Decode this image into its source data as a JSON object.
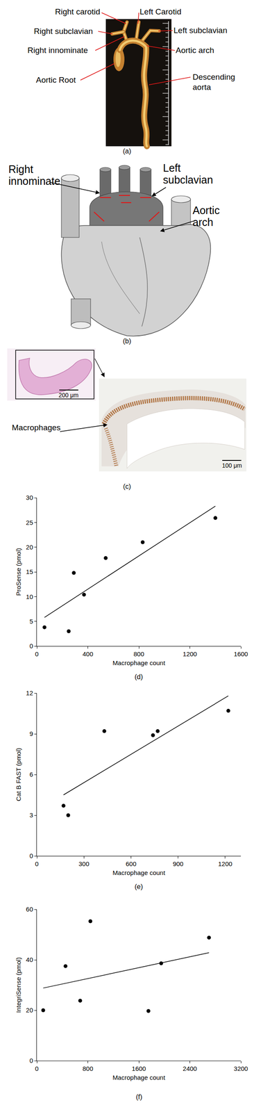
{
  "panel_a": {
    "caption": "(a)",
    "labels": [
      "Right carotid",
      "Left Carotid",
      "Right subclavian",
      "Left subclavian",
      "Right innominate",
      "Aortic arch",
      "Aortic Root",
      "Descending aorta"
    ]
  },
  "panel_b": {
    "caption": "(b)",
    "labels": [
      "Right innominate",
      "Left subclavian",
      "Aortic arch"
    ]
  },
  "panel_c": {
    "caption": "(c)",
    "scale_bars": [
      "200 μm",
      "100 μm"
    ],
    "label": "Macrophages"
  },
  "chart_data": [
    {
      "type": "scatter",
      "caption": "(d)",
      "x_label": "Macrophage count",
      "y_label": "ProSense (pmol)",
      "x": [
        60,
        250,
        290,
        370,
        540,
        830,
        1400
      ],
      "y": [
        3.8,
        3.0,
        14.8,
        10.4,
        17.8,
        21.0,
        25.9
      ],
      "fit_line": {
        "x": [
          60,
          1400
        ],
        "y": [
          5.8,
          28.3
        ],
        "line_style": "solid"
      },
      "xlim": [
        0,
        1600
      ],
      "xticks": [
        0,
        400,
        800,
        1200,
        1600
      ],
      "ylim": [
        0,
        30
      ],
      "yticks": [
        0,
        5,
        10,
        15,
        20,
        25,
        30
      ],
      "color": "#000000",
      "marker": "circle",
      "grid": false
    },
    {
      "type": "scatter",
      "caption": "(e)",
      "x_label": "Macrophage count",
      "y_label": "Cat B FAST (pmol)",
      "x": [
        170,
        200,
        430,
        740,
        770,
        1220
      ],
      "y": [
        3.7,
        3.0,
        9.2,
        8.9,
        9.2,
        10.7
      ],
      "fit_line": {
        "x": [
          170,
          1220
        ],
        "y": [
          4.5,
          11.8
        ],
        "line_style": "solid"
      },
      "xlim": [
        0,
        1300
      ],
      "xticks": [
        0,
        300,
        600,
        900,
        1200
      ],
      "ylim": [
        0,
        12
      ],
      "yticks": [
        0,
        3,
        6,
        9,
        12
      ],
      "color": "#000000",
      "marker": "circle",
      "grid": false
    },
    {
      "type": "scatter",
      "caption": "(f)",
      "x_label": "Macrophage count",
      "y_label": "IntegriSense (pmol)",
      "x": [
        100,
        450,
        680,
        840,
        1750,
        1950,
        2700
      ],
      "y": [
        20.0,
        37.5,
        23.8,
        55.3,
        19.7,
        38.6,
        48.8
      ],
      "fit_line": {
        "x": [
          100,
          2700
        ],
        "y": [
          28.8,
          42.8
        ],
        "line_style": "solid"
      },
      "xlim": [
        0,
        3200
      ],
      "xticks": [
        0,
        800,
        1600,
        2400,
        3200
      ],
      "ylim": [
        0,
        60
      ],
      "yticks": [
        0,
        20,
        40,
        60
      ],
      "color": "#000000",
      "marker": "circle",
      "grid": false
    }
  ]
}
